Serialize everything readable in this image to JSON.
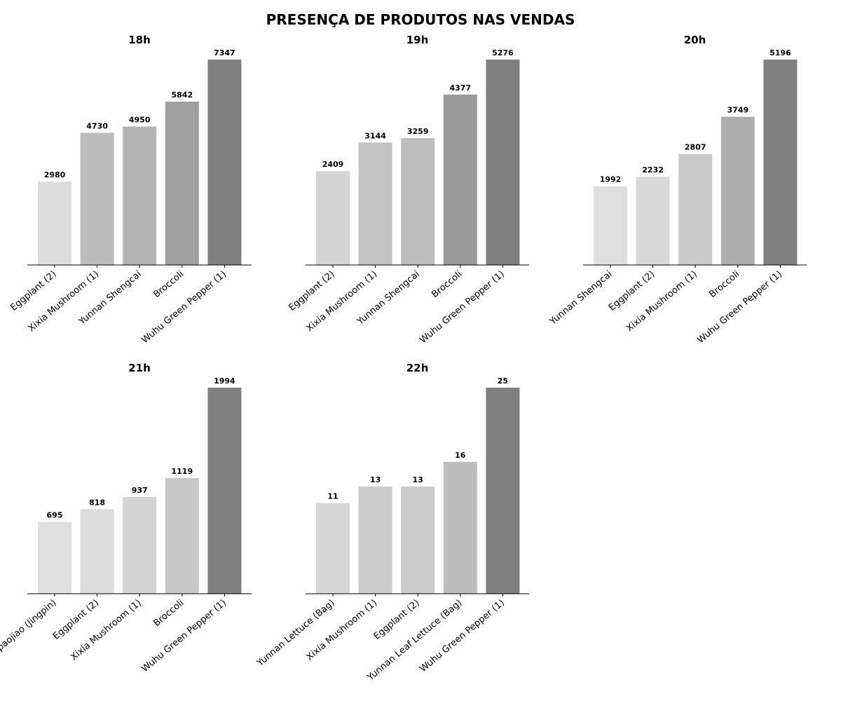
{
  "figure_title": "PRESENÇA DE PRODUTOS NAS VENDAS",
  "chart_data": [
    {
      "type": "bar",
      "title": "18h",
      "categories": [
        "Eggplant (2)",
        "Xixia Mushroom (1)",
        "Yunnan Shengcai",
        "Broccoli",
        "Wuhu Green Pepper (1)"
      ],
      "values": [
        2980,
        4730,
        4950,
        5842,
        7347
      ],
      "bar_colors": [
        "#dcdcdc",
        "#bcbcbc",
        "#b4b4b4",
        "#9f9f9f",
        "#808080"
      ],
      "ylim": [
        0,
        7347
      ],
      "grid": false
    },
    {
      "type": "bar",
      "title": "19h",
      "categories": [
        "Eggplant (2)",
        "Xixia Mushroom (1)",
        "Yunnan Shengcai",
        "Broccoli",
        "Wuhu Green Pepper (1)"
      ],
      "values": [
        2409,
        3144,
        3259,
        4377,
        5276
      ],
      "bar_colors": [
        "#d4d4d4",
        "#c3c3c3",
        "#bdbdbd",
        "#9a9a9a",
        "#808080"
      ],
      "ylim": [
        0,
        5276
      ],
      "grid": false
    },
    {
      "type": "bar",
      "title": "20h",
      "categories": [
        "Yunnan Shengcai",
        "Eggplant (2)",
        "Xixia Mushroom (1)",
        "Broccoli",
        "Wuhu Green Pepper (1)"
      ],
      "values": [
        1992,
        2232,
        2807,
        3749,
        5196
      ],
      "bar_colors": [
        "#dedede",
        "#d8d8d8",
        "#cacaca",
        "#adadad",
        "#808080"
      ],
      "ylim": [
        0,
        5196
      ],
      "grid": false
    },
    {
      "type": "bar",
      "title": "21h",
      "categories": [
        "Paopaojiao (Jingpin)",
        "Eggplant (2)",
        "Xixia Mushroom (1)",
        "Broccoli",
        "Wuhu Green Pepper (1)"
      ],
      "values": [
        695,
        818,
        937,
        1119,
        1994
      ],
      "bar_colors": [
        "#e0e0e0",
        "#dbdbdb",
        "#d4d4d4",
        "#c8c8c8",
        "#808080"
      ],
      "ylim": [
        0,
        1994
      ],
      "grid": false
    },
    {
      "type": "bar",
      "title": "22h",
      "categories": [
        "Yunnan Lettuce (Bag)",
        "Xixia Mushroom (1)",
        "Eggplant (2)",
        "Yunnan Leaf Lettuce (Bag)",
        "Wuhu Green Pepper (1)"
      ],
      "values": [
        11,
        13,
        13,
        16,
        25
      ],
      "bar_colors": [
        "#d6d6d6",
        "#cbcbcb",
        "#cbcbcb",
        "#bcbcbc",
        "#808080"
      ],
      "ylim": [
        0,
        25
      ],
      "grid": false
    }
  ]
}
